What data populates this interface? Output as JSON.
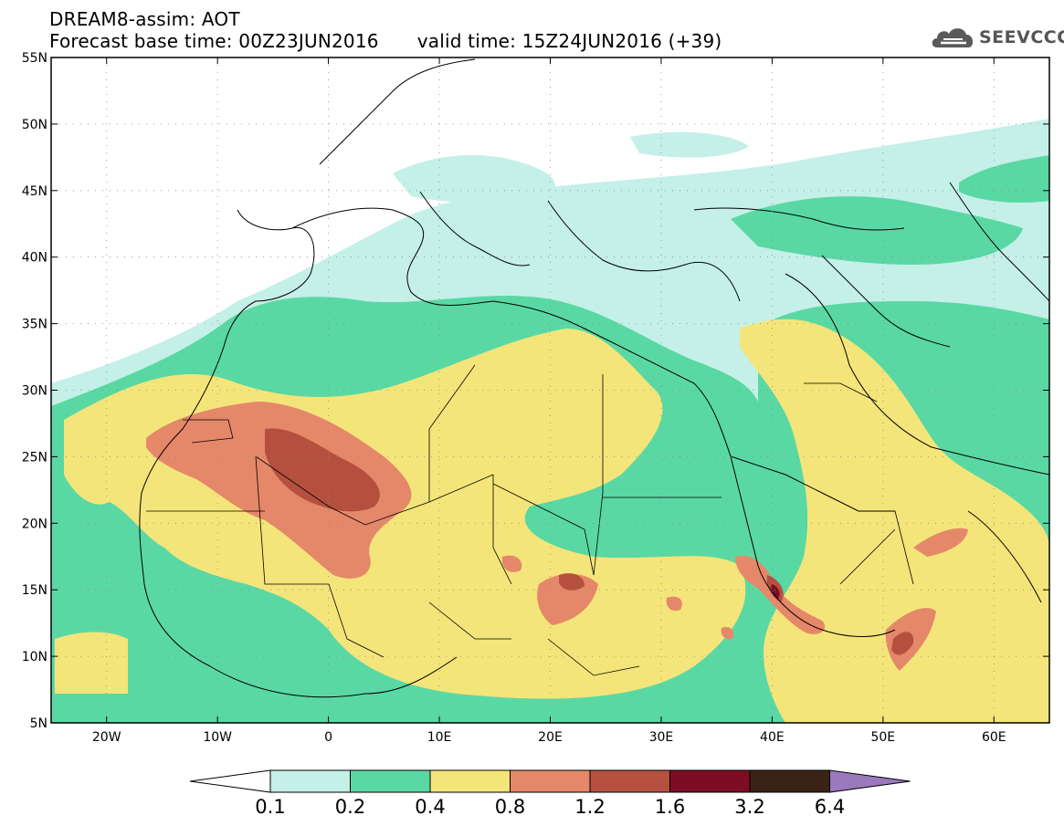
{
  "header": {
    "line1": "DREAM8-assim: AOT",
    "base_time": "Forecast base time: 00Z23JUN2016",
    "valid_time": "valid time: 15Z24JUN2016 (+39)"
  },
  "logo": {
    "text": "SEEVCCC",
    "icon": "cloud-icon"
  },
  "map": {
    "lon_range": [
      -25,
      65
    ],
    "lat_range": [
      5,
      55
    ],
    "lat_labels": [
      "5N",
      "10N",
      "15N",
      "20N",
      "25N",
      "30N",
      "35N",
      "40N",
      "45N",
      "50N",
      "55N"
    ],
    "lon_labels": [
      "20W",
      "10W",
      "0",
      "10E",
      "20E",
      "30E",
      "40E",
      "50E",
      "60E"
    ],
    "gridlines": "dotted"
  },
  "legend": {
    "colors": [
      "#ffffff",
      "#c4f0e8",
      "#5ad8a4",
      "#f4e57a",
      "#e5886a",
      "#b5503f",
      "#7c0d24",
      "#3a2314",
      "#9b79bd"
    ],
    "labels": [
      "0.1",
      "0.2",
      "0.4",
      "0.8",
      "1.2",
      "1.6",
      "3.2",
      "6.4"
    ]
  }
}
